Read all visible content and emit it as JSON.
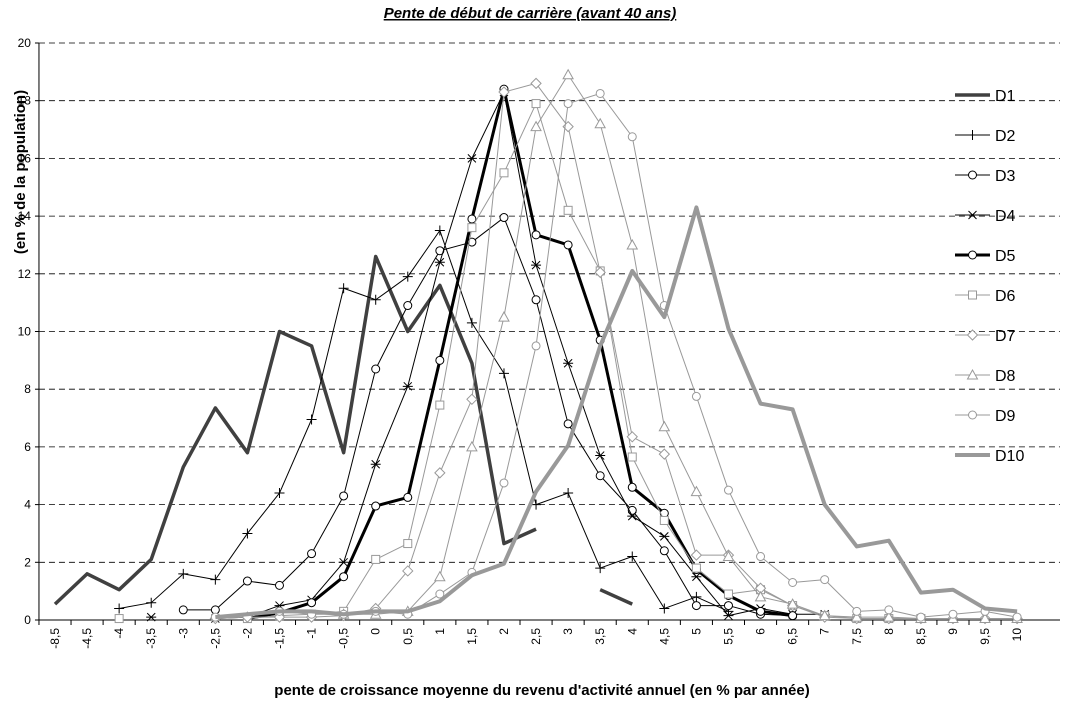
{
  "chart_data": {
    "type": "line",
    "title": "Pente de début de carrière (avant 40 ans)",
    "y_label": "(en % de la population)",
    "x_label": "pente de croissance moyenne du revenu d'activité annuel (en % par année)",
    "categories": [
      "-8,5",
      "-4,5",
      "-4",
      "-3,5",
      "-3",
      "-2,5",
      "-2",
      "-1,5",
      "-1",
      "-0,5",
      "0",
      "0,5",
      "1",
      "1,5",
      "2",
      "2,5",
      "3",
      "3,5",
      "4",
      "4,5",
      "5",
      "5,5",
      "6",
      "6,5",
      "7",
      "7,5",
      "8",
      "8,5",
      "9",
      "9,5",
      "10"
    ],
    "ylim": [
      0,
      20
    ],
    "yticks": [
      0,
      2,
      4,
      6,
      8,
      10,
      12,
      14,
      16,
      18,
      20
    ],
    "grid": true,
    "legend": "right",
    "series": [
      {
        "name": "D1",
        "color": "#404040",
        "width": 3.5,
        "marker": "none",
        "values": [
          0.55,
          1.6,
          1.05,
          2.1,
          5.3,
          7.35,
          5.8,
          10,
          9.5,
          5.8,
          12.6,
          10,
          11.6,
          8.9,
          2.65,
          3.15,
          null,
          1.05,
          0.55,
          null,
          null,
          null,
          null,
          null,
          null,
          null,
          null,
          null,
          null,
          null,
          null
        ]
      },
      {
        "name": "D2",
        "color": "#000000",
        "width": 1,
        "marker": "plus",
        "values": [
          null,
          null,
          0.4,
          0.6,
          1.6,
          1.4,
          3,
          4.4,
          6.95,
          11.5,
          11.1,
          11.9,
          13.5,
          10.3,
          8.55,
          4,
          4.4,
          1.8,
          2.2,
          0.4,
          0.8,
          0.3,
          null,
          null,
          null,
          null,
          null,
          null,
          null,
          null,
          null
        ]
      },
      {
        "name": "D3",
        "color": "#000000",
        "width": 1,
        "marker": "circle",
        "values": [
          null,
          null,
          null,
          null,
          0.35,
          0.35,
          1.35,
          1.2,
          2.3,
          4.3,
          8.7,
          10.9,
          12.8,
          13.1,
          13.95,
          11.1,
          6.8,
          5,
          3.8,
          2.4,
          0.5,
          0.5,
          0.2,
          0.15,
          null,
          null,
          null,
          null,
          null,
          null,
          null
        ]
      },
      {
        "name": "D4",
        "color": "#000000",
        "width": 1,
        "marker": "star",
        "values": [
          null,
          null,
          null,
          0.1,
          null,
          0.05,
          0.1,
          0.5,
          0.7,
          2,
          5.4,
          8.1,
          12.4,
          16,
          18.3,
          12.3,
          8.9,
          5.7,
          3.6,
          2.9,
          1.5,
          0.15,
          0.4,
          0.2,
          0.2,
          null,
          null,
          null,
          null,
          null,
          null
        ]
      },
      {
        "name": "D5",
        "color": "#000000",
        "width": 3,
        "marker": "circle",
        "values": [
          null,
          null,
          null,
          null,
          null,
          null,
          0.05,
          0.25,
          0.6,
          1.5,
          3.95,
          4.25,
          9,
          13.9,
          18.4,
          13.35,
          13,
          9.7,
          4.6,
          3.7,
          1.75,
          0.85,
          0.3,
          0.15,
          null,
          null,
          null,
          null,
          null,
          null,
          null
        ]
      },
      {
        "name": "D6",
        "color": "#999999",
        "width": 1,
        "marker": "square",
        "values": [
          null,
          null,
          0.05,
          null,
          null,
          null,
          0.05,
          0.15,
          0.2,
          0.3,
          2.1,
          2.65,
          7.45,
          13.6,
          15.5,
          17.9,
          14.2,
          12.1,
          5.65,
          3.45,
          1.8,
          0.9,
          1.05,
          0.5,
          0.15,
          0.05,
          0.05,
          0.05,
          null,
          null,
          null
        ]
      },
      {
        "name": "D7",
        "color": "#999999",
        "width": 1,
        "marker": "diamond",
        "values": [
          null,
          null,
          null,
          null,
          null,
          0.05,
          0.1,
          0.1,
          0.1,
          0.15,
          0.4,
          1.7,
          5.1,
          7.65,
          18.3,
          18.6,
          17.1,
          12.05,
          6.35,
          5.75,
          2.25,
          2.25,
          1.1,
          0.5,
          0.1,
          0.05,
          0.05,
          0.05,
          0.05,
          0.05,
          0.05
        ]
      },
      {
        "name": "D8",
        "color": "#999999",
        "width": 1,
        "marker": "triangle",
        "values": [
          null,
          null,
          null,
          null,
          null,
          null,
          null,
          null,
          null,
          0.2,
          0.2,
          0.3,
          1.5,
          6,
          10.5,
          17.1,
          18.9,
          17.2,
          13,
          6.7,
          4.45,
          2.2,
          0.8,
          0.55,
          0.15,
          0.1,
          0.1,
          0.05,
          0.05,
          0.05,
          0.05
        ]
      },
      {
        "name": "D9",
        "color": "#999999",
        "width": 1,
        "marker": "circle",
        "values": [
          null,
          null,
          null,
          null,
          null,
          0.1,
          null,
          0.3,
          0.2,
          0.2,
          0.3,
          0.2,
          0.9,
          1.65,
          4.75,
          9.5,
          17.9,
          18.25,
          16.75,
          10.9,
          7.75,
          4.5,
          2.2,
          1.3,
          1.4,
          0.3,
          0.35,
          0.1,
          0.2,
          0.3,
          0.1
        ]
      },
      {
        "name": "D10",
        "color": "#999999",
        "width": 4,
        "marker": "none",
        "values": [
          null,
          null,
          null,
          null,
          null,
          0.1,
          0.2,
          0.3,
          0.3,
          0.2,
          0.3,
          0.3,
          0.65,
          1.55,
          1.95,
          4.45,
          6.05,
          9.5,
          12.1,
          10.5,
          14.3,
          10.1,
          7.5,
          7.3,
          4,
          2.55,
          2.75,
          0.95,
          1.05,
          0.4,
          0.3
        ]
      }
    ]
  }
}
